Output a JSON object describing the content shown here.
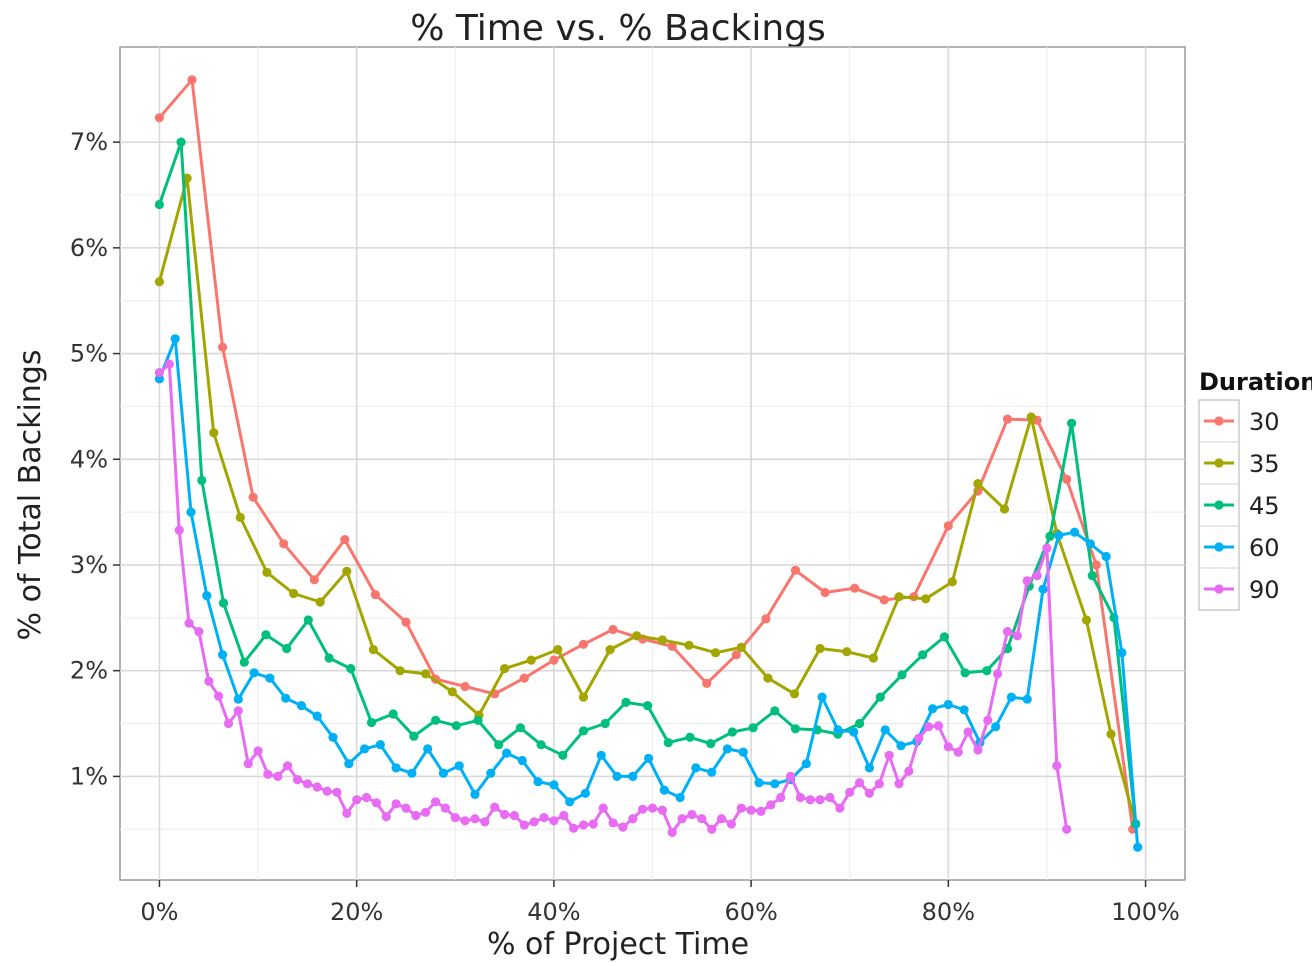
{
  "chart_data": {
    "type": "line",
    "title": "% Time vs. % Backings",
    "xlabel": "% of Project Time",
    "ylabel": "% of Total Backings",
    "xlim": [
      -4,
      104
    ],
    "ylim": [
      0.02,
      7.9
    ],
    "x_ticks": [
      0,
      20,
      40,
      60,
      80,
      100
    ],
    "x_tick_labels": [
      "0%",
      "20%",
      "40%",
      "60%",
      "80%",
      "100%"
    ],
    "y_ticks": [
      1,
      2,
      3,
      4,
      5,
      6,
      7
    ],
    "y_tick_labels": [
      "1%",
      "2%",
      "3%",
      "4%",
      "5%",
      "6%",
      "7%"
    ],
    "grid": true,
    "legend": {
      "title": "Duration",
      "position": "right"
    },
    "series": [
      {
        "name": "30",
        "color": "#F8766D",
        "points": [
          [
            0,
            7.23
          ],
          [
            3.3,
            7.59
          ],
          [
            6.4,
            5.06
          ],
          [
            9.5,
            3.64
          ],
          [
            12.6,
            3.2
          ],
          [
            15.7,
            2.86
          ],
          [
            18.8,
            3.24
          ],
          [
            21.9,
            2.72
          ],
          [
            25,
            2.46
          ],
          [
            28,
            1.92
          ],
          [
            31,
            1.85
          ],
          [
            34,
            1.78
          ],
          [
            37,
            1.93
          ],
          [
            40,
            2.1
          ],
          [
            43,
            2.25
          ],
          [
            46,
            2.39
          ],
          [
            49,
            2.3
          ],
          [
            52,
            2.23
          ],
          [
            55.5,
            1.88
          ],
          [
            58.5,
            2.15
          ],
          [
            61.5,
            2.49
          ],
          [
            64.5,
            2.95
          ],
          [
            67.5,
            2.74
          ],
          [
            70.5,
            2.78
          ],
          [
            73.5,
            2.67
          ],
          [
            76.5,
            2.7
          ],
          [
            80,
            3.37
          ],
          [
            83,
            3.7
          ],
          [
            86,
            4.38
          ],
          [
            89,
            4.37
          ],
          [
            92,
            3.81
          ],
          [
            95,
            3.0
          ],
          [
            98.7,
            0.5
          ]
        ]
      },
      {
        "name": "35",
        "color": "#A3A500",
        "points": [
          [
            0,
            5.68
          ],
          [
            2.8,
            6.66
          ],
          [
            5.5,
            4.25
          ],
          [
            8.2,
            3.45
          ],
          [
            10.9,
            2.93
          ],
          [
            13.6,
            2.73
          ],
          [
            16.3,
            2.65
          ],
          [
            19,
            2.94
          ],
          [
            21.7,
            2.2
          ],
          [
            24.4,
            2.0
          ],
          [
            27,
            1.97
          ],
          [
            29.7,
            1.8
          ],
          [
            32.4,
            1.58
          ],
          [
            35,
            2.02
          ],
          [
            37.7,
            2.1
          ],
          [
            40.4,
            2.2
          ],
          [
            43,
            1.75
          ],
          [
            45.7,
            2.2
          ],
          [
            48.4,
            2.33
          ],
          [
            51,
            2.29
          ],
          [
            53.7,
            2.24
          ],
          [
            56.4,
            2.17
          ],
          [
            59,
            2.22
          ],
          [
            61.7,
            1.93
          ],
          [
            64.4,
            1.78
          ],
          [
            67,
            2.21
          ],
          [
            69.7,
            2.18
          ],
          [
            72.4,
            2.12
          ],
          [
            75,
            2.7
          ],
          [
            77.7,
            2.68
          ],
          [
            80.4,
            2.84
          ],
          [
            83,
            3.77
          ],
          [
            85.7,
            3.53
          ],
          [
            88.4,
            4.4
          ],
          [
            91,
            3.3
          ],
          [
            94,
            2.48
          ],
          [
            96.5,
            1.4
          ],
          [
            99,
            0.55
          ]
        ]
      },
      {
        "name": "45",
        "color": "#00BF7D",
        "points": [
          [
            0,
            6.41
          ],
          [
            2.2,
            7.0
          ],
          [
            4.3,
            3.8
          ],
          [
            6.5,
            2.64
          ],
          [
            8.6,
            2.08
          ],
          [
            10.8,
            2.34
          ],
          [
            12.9,
            2.21
          ],
          [
            15.1,
            2.48
          ],
          [
            17.2,
            2.12
          ],
          [
            19.4,
            2.02
          ],
          [
            21.5,
            1.51
          ],
          [
            23.7,
            1.59
          ],
          [
            25.8,
            1.38
          ],
          [
            28,
            1.53
          ],
          [
            30.1,
            1.48
          ],
          [
            32.3,
            1.53
          ],
          [
            34.4,
            1.3
          ],
          [
            36.6,
            1.46
          ],
          [
            38.7,
            1.3
          ],
          [
            40.9,
            1.2
          ],
          [
            43,
            1.43
          ],
          [
            45.2,
            1.5
          ],
          [
            47.3,
            1.7
          ],
          [
            49.5,
            1.67
          ],
          [
            51.6,
            1.32
          ],
          [
            53.8,
            1.37
          ],
          [
            55.9,
            1.31
          ],
          [
            58.1,
            1.42
          ],
          [
            60.2,
            1.46
          ],
          [
            62.4,
            1.62
          ],
          [
            64.5,
            1.45
          ],
          [
            66.7,
            1.44
          ],
          [
            68.8,
            1.4
          ],
          [
            71,
            1.5
          ],
          [
            73.1,
            1.75
          ],
          [
            75.3,
            1.96
          ],
          [
            77.4,
            2.15
          ],
          [
            79.6,
            2.32
          ],
          [
            81.7,
            1.98
          ],
          [
            83.9,
            2.0
          ],
          [
            86,
            2.21
          ],
          [
            88.2,
            2.8
          ],
          [
            90.3,
            3.27
          ],
          [
            92.5,
            4.34
          ],
          [
            94.6,
            2.9
          ],
          [
            96.8,
            2.5
          ],
          [
            99,
            0.55
          ]
        ]
      },
      {
        "name": "60",
        "color": "#00B0F6",
        "points": [
          [
            0,
            4.76
          ],
          [
            1.6,
            5.14
          ],
          [
            3.2,
            3.5
          ],
          [
            4.8,
            2.71
          ],
          [
            6.4,
            2.15
          ],
          [
            8,
            1.73
          ],
          [
            9.6,
            1.98
          ],
          [
            11.2,
            1.93
          ],
          [
            12.8,
            1.74
          ],
          [
            14.4,
            1.67
          ],
          [
            16,
            1.57
          ],
          [
            17.6,
            1.37
          ],
          [
            19.2,
            1.12
          ],
          [
            20.8,
            1.26
          ],
          [
            22.4,
            1.3
          ],
          [
            24,
            1.08
          ],
          [
            25.6,
            1.03
          ],
          [
            27.2,
            1.26
          ],
          [
            28.8,
            1.03
          ],
          [
            30.4,
            1.1
          ],
          [
            32,
            0.83
          ],
          [
            33.6,
            1.03
          ],
          [
            35.2,
            1.22
          ],
          [
            36.8,
            1.15
          ],
          [
            38.4,
            0.95
          ],
          [
            40,
            0.92
          ],
          [
            41.6,
            0.76
          ],
          [
            43.2,
            0.84
          ],
          [
            44.8,
            1.2
          ],
          [
            46.4,
            1.0
          ],
          [
            48,
            1.0
          ],
          [
            49.6,
            1.17
          ],
          [
            51.2,
            0.87
          ],
          [
            52.8,
            0.8
          ],
          [
            54.4,
            1.08
          ],
          [
            56,
            1.04
          ],
          [
            57.6,
            1.26
          ],
          [
            59.2,
            1.23
          ],
          [
            60.8,
            0.94
          ],
          [
            62.4,
            0.93
          ],
          [
            64,
            0.97
          ],
          [
            65.6,
            1.12
          ],
          [
            67.2,
            1.75
          ],
          [
            68.8,
            1.44
          ],
          [
            70.4,
            1.42
          ],
          [
            72,
            1.08
          ],
          [
            73.6,
            1.44
          ],
          [
            75.2,
            1.29
          ],
          [
            76.8,
            1.33
          ],
          [
            78.4,
            1.64
          ],
          [
            80,
            1.68
          ],
          [
            81.6,
            1.63
          ],
          [
            83.2,
            1.32
          ],
          [
            84.8,
            1.47
          ],
          [
            86.4,
            1.75
          ],
          [
            88,
            1.73
          ],
          [
            89.6,
            2.77
          ],
          [
            91.2,
            3.28
          ],
          [
            92.8,
            3.31
          ],
          [
            94.4,
            3.2
          ],
          [
            96,
            3.08
          ],
          [
            97.6,
            2.17
          ],
          [
            99.2,
            0.33
          ]
        ]
      },
      {
        "name": "90",
        "color": "#E76BF3",
        "points": [
          [
            0,
            4.82
          ],
          [
            1,
            4.9
          ],
          [
            2,
            3.33
          ],
          [
            3,
            2.45
          ],
          [
            4,
            2.37
          ],
          [
            5,
            1.9
          ],
          [
            6,
            1.76
          ],
          [
            7,
            1.5
          ],
          [
            8,
            1.62
          ],
          [
            9,
            1.12
          ],
          [
            10,
            1.24
          ],
          [
            11,
            1.02
          ],
          [
            12,
            1.0
          ],
          [
            13,
            1.1
          ],
          [
            14,
            0.97
          ],
          [
            15,
            0.93
          ],
          [
            16,
            0.9
          ],
          [
            17,
            0.86
          ],
          [
            18,
            0.85
          ],
          [
            19,
            0.65
          ],
          [
            20,
            0.78
          ],
          [
            21,
            0.8
          ],
          [
            22,
            0.75
          ],
          [
            23,
            0.62
          ],
          [
            24,
            0.74
          ],
          [
            25,
            0.7
          ],
          [
            26,
            0.63
          ],
          [
            27,
            0.66
          ],
          [
            28,
            0.76
          ],
          [
            29,
            0.7
          ],
          [
            30,
            0.61
          ],
          [
            31,
            0.58
          ],
          [
            32,
            0.6
          ],
          [
            33,
            0.57
          ],
          [
            34,
            0.71
          ],
          [
            35,
            0.64
          ],
          [
            36,
            0.63
          ],
          [
            37,
            0.54
          ],
          [
            38,
            0.57
          ],
          [
            39,
            0.61
          ],
          [
            40,
            0.58
          ],
          [
            41,
            0.63
          ],
          [
            42,
            0.51
          ],
          [
            43,
            0.54
          ],
          [
            44,
            0.55
          ],
          [
            45,
            0.7
          ],
          [
            46,
            0.56
          ],
          [
            47,
            0.52
          ],
          [
            48,
            0.6
          ],
          [
            49,
            0.69
          ],
          [
            50,
            0.7
          ],
          [
            51,
            0.68
          ],
          [
            52,
            0.47
          ],
          [
            53,
            0.6
          ],
          [
            54,
            0.64
          ],
          [
            55,
            0.6
          ],
          [
            56,
            0.5
          ],
          [
            57,
            0.6
          ],
          [
            58,
            0.55
          ],
          [
            59,
            0.7
          ],
          [
            60,
            0.68
          ],
          [
            61,
            0.67
          ],
          [
            62,
            0.73
          ],
          [
            63,
            0.8
          ],
          [
            64,
            1.0
          ],
          [
            65,
            0.8
          ],
          [
            66,
            0.78
          ],
          [
            67,
            0.78
          ],
          [
            68,
            0.8
          ],
          [
            69,
            0.7
          ],
          [
            70,
            0.85
          ],
          [
            71,
            0.94
          ],
          [
            72,
            0.84
          ],
          [
            73,
            0.93
          ],
          [
            74,
            1.2
          ],
          [
            75,
            0.93
          ],
          [
            76,
            1.05
          ],
          [
            77,
            1.36
          ],
          [
            78,
            1.47
          ],
          [
            79,
            1.48
          ],
          [
            80,
            1.28
          ],
          [
            81,
            1.23
          ],
          [
            82,
            1.42
          ],
          [
            83,
            1.25
          ],
          [
            84,
            1.53
          ],
          [
            85,
            1.97
          ],
          [
            86,
            2.37
          ],
          [
            87,
            2.33
          ],
          [
            88,
            2.85
          ],
          [
            89,
            2.9
          ],
          [
            90,
            3.16
          ],
          [
            91,
            1.1
          ],
          [
            92,
            0.5
          ]
        ]
      }
    ]
  }
}
